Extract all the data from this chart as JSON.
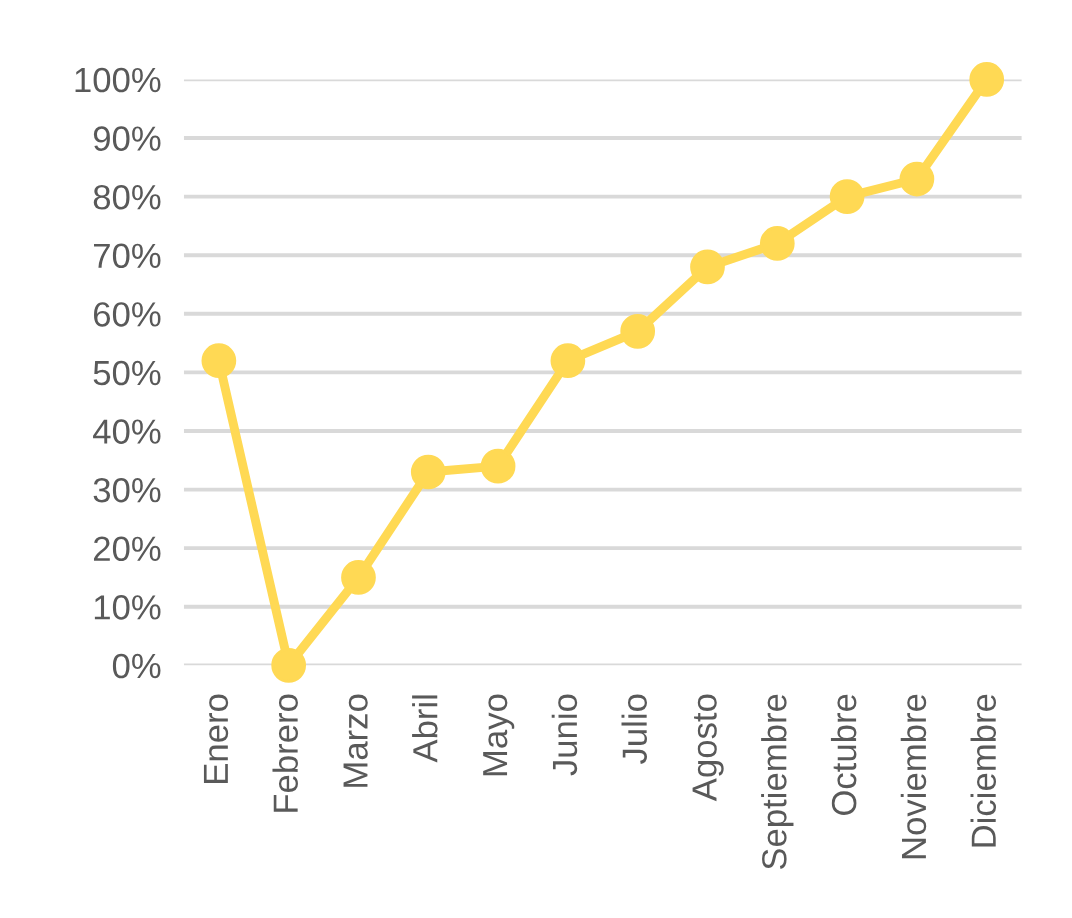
{
  "chart_data": {
    "type": "line",
    "categories": [
      "Enero",
      "Febrero",
      "Marzo",
      "Abril",
      "Mayo",
      "Junio",
      "Julio",
      "Agosto",
      "Septiembre",
      "Octubre",
      "Noviembre",
      "Diciembre"
    ],
    "series": [
      {
        "color": "#ffd954",
        "values": [
          52,
          0,
          15,
          33,
          34,
          52,
          57,
          68,
          72,
          80,
          83,
          100
        ]
      }
    ],
    "ylim": [
      0,
      100
    ],
    "yticks": [
      {
        "value": 0,
        "label": "0%"
      },
      {
        "value": 10,
        "label": "10%"
      },
      {
        "value": 20,
        "label": "20%"
      },
      {
        "value": 30,
        "label": "30%"
      },
      {
        "value": 40,
        "label": "40%"
      },
      {
        "value": 50,
        "label": "50%"
      },
      {
        "value": 60,
        "label": "60%"
      },
      {
        "value": 70,
        "label": "70%"
      },
      {
        "value": 80,
        "label": "80%"
      },
      {
        "value": 90,
        "label": "90%"
      },
      {
        "value": 100,
        "label": "100%"
      }
    ],
    "grid": "y",
    "marker": "circle",
    "line_style": "solid"
  }
}
